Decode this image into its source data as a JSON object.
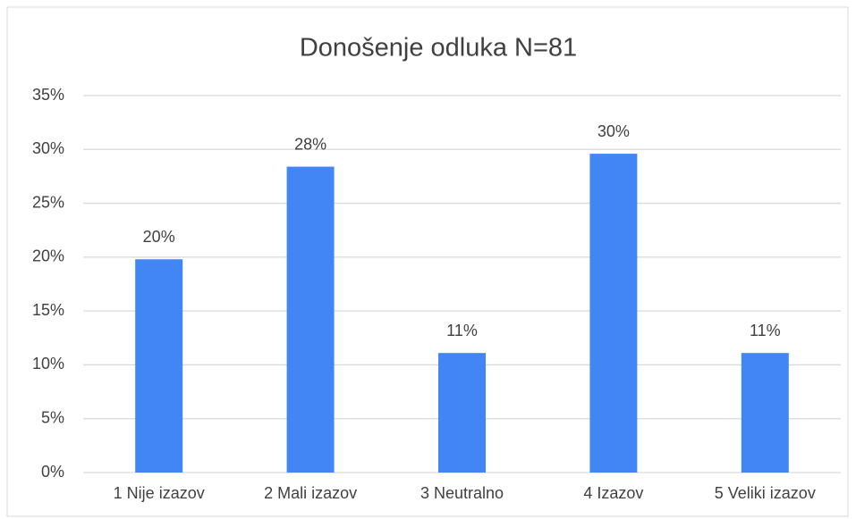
{
  "chart_data": {
    "type": "bar",
    "title": "Donošenje odluka N=81",
    "categories": [
      "1 Nije izazov",
      "2 Mali izazov",
      "3 Neutralno",
      "4 Izazov",
      "5 Veliki izazov"
    ],
    "values": [
      19.8,
      28.4,
      11.1,
      29.6,
      11.1
    ],
    "value_labels": [
      "20%",
      "28%",
      "11%",
      "30%",
      "11%"
    ],
    "color": "#4285f4",
    "ylim": [
      0,
      35
    ],
    "yticks": [
      {
        "value": 0,
        "label": "0%"
      },
      {
        "value": 5,
        "label": "5%"
      },
      {
        "value": 10,
        "label": "10%"
      },
      {
        "value": 15,
        "label": "15%"
      },
      {
        "value": 20,
        "label": "20%"
      },
      {
        "value": 25,
        "label": "25%"
      },
      {
        "value": 30,
        "label": "30%"
      },
      {
        "value": 35,
        "label": "35%"
      }
    ],
    "grid": true
  }
}
